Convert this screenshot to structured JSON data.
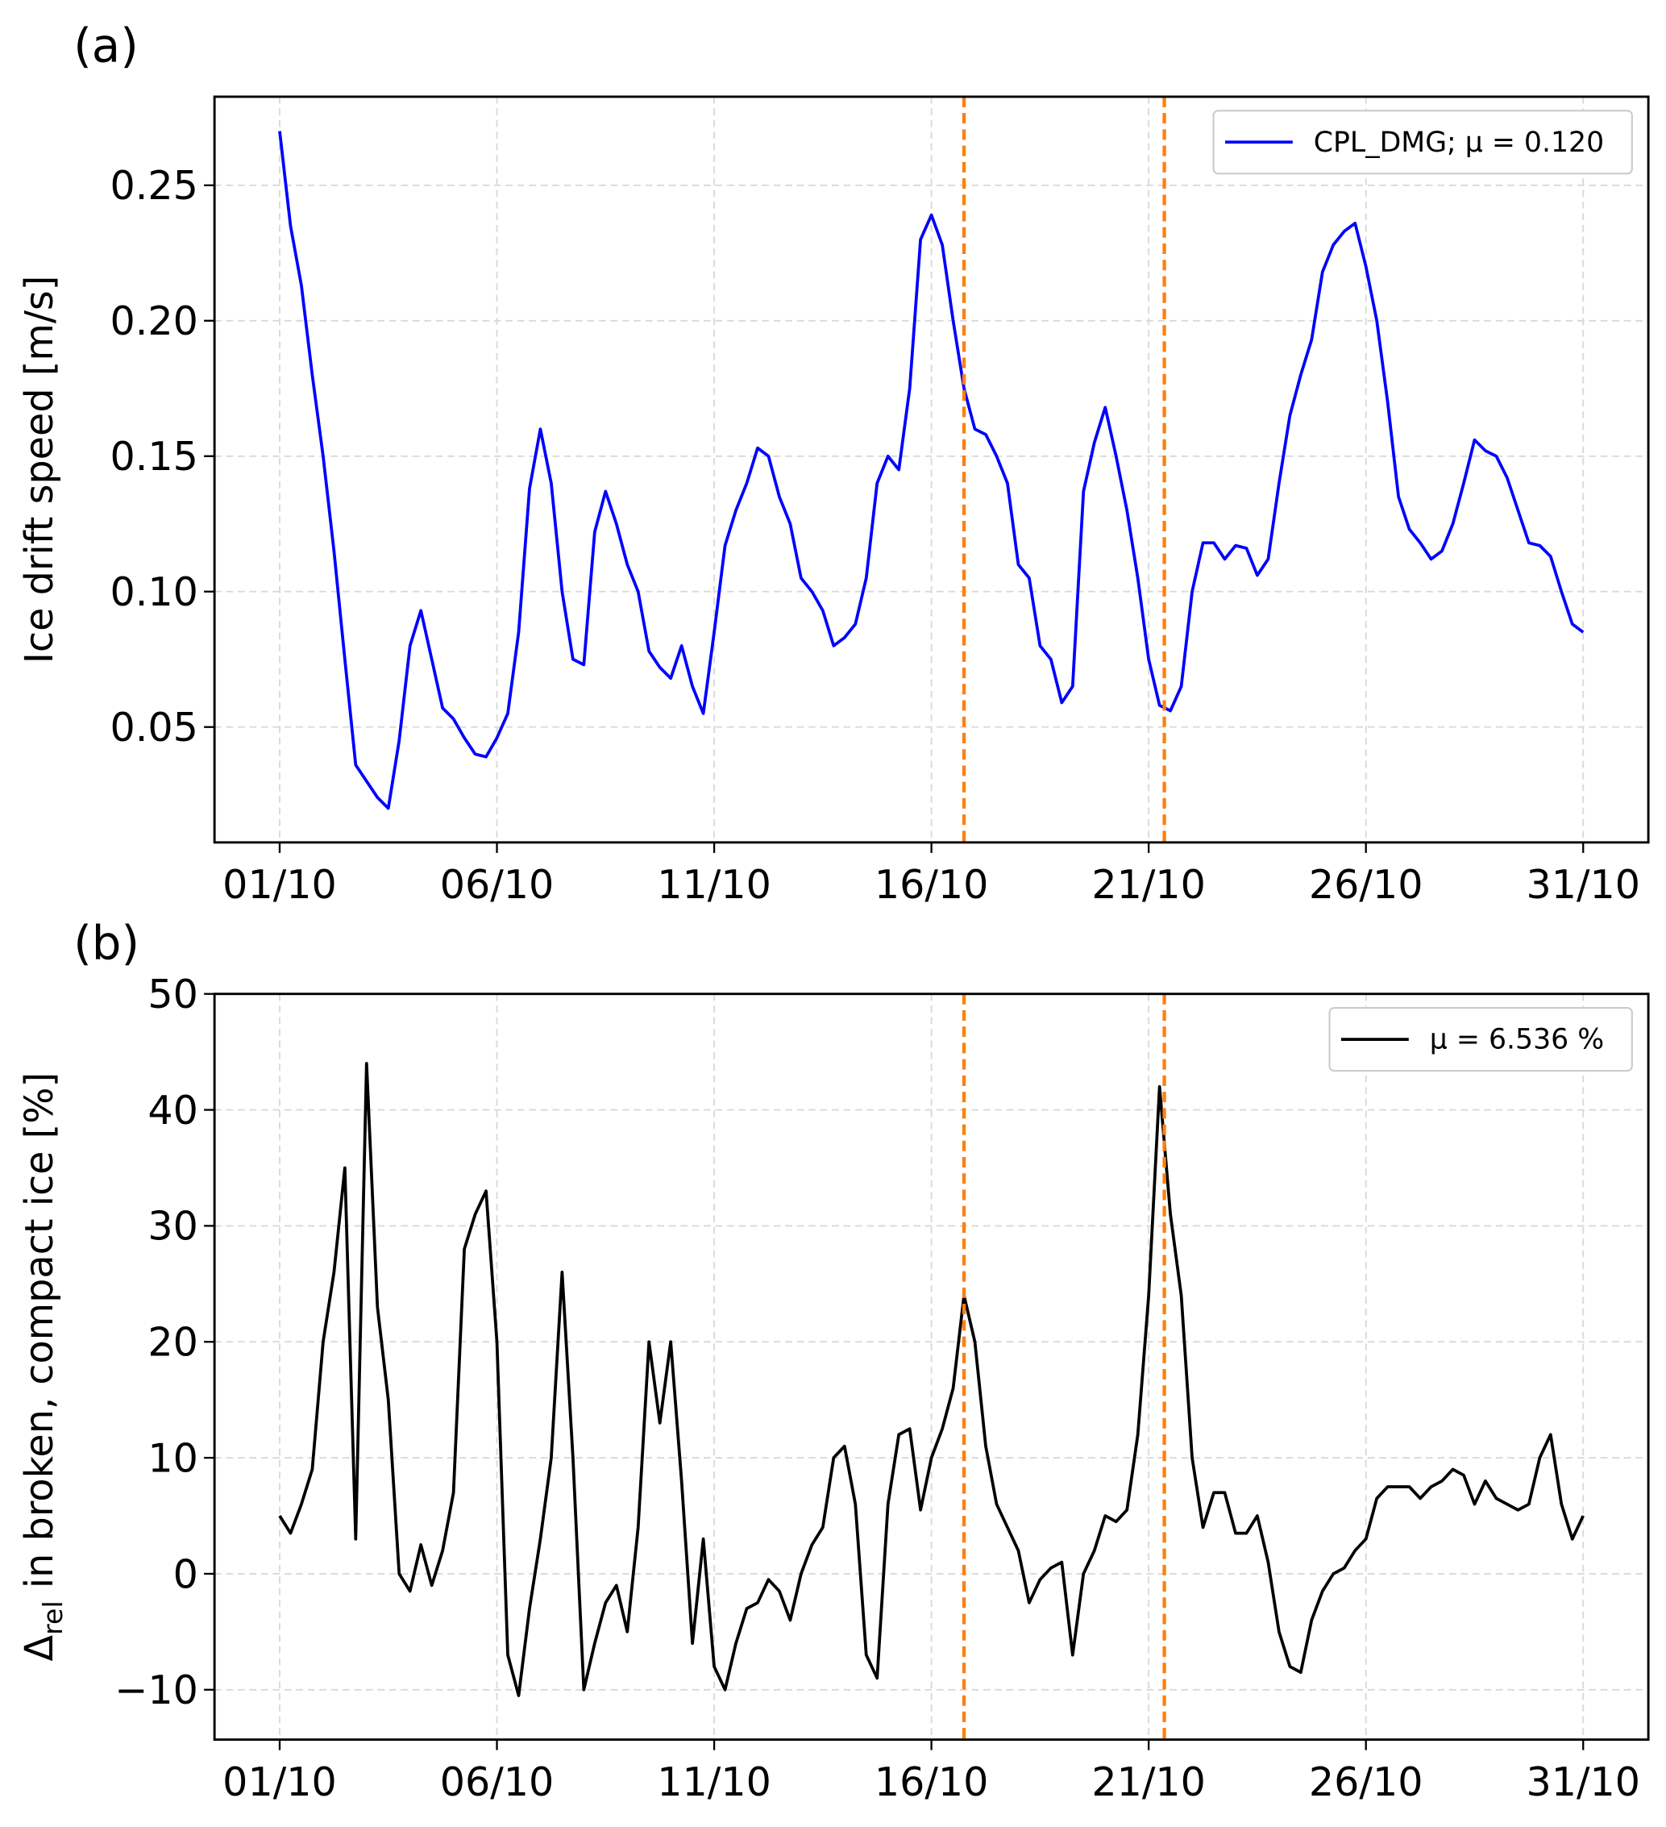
{
  "chart_data": [
    {
      "type": "line",
      "panel_label": "(a)",
      "ylabel": "Ice drift speed [m/s]",
      "x": [
        1,
        1.25,
        1.5,
        1.75,
        2,
        2.25,
        2.5,
        2.75,
        3,
        3.25,
        3.5,
        3.75,
        4,
        4.25,
        4.5,
        4.75,
        5,
        5.25,
        5.5,
        5.75,
        6,
        6.25,
        6.5,
        6.75,
        7,
        7.25,
        7.5,
        7.75,
        8,
        8.25,
        8.5,
        8.75,
        9,
        9.25,
        9.5,
        9.75,
        10,
        10.25,
        10.5,
        10.75,
        11,
        11.25,
        11.5,
        11.75,
        12,
        12.25,
        12.5,
        12.75,
        13,
        13.25,
        13.5,
        13.75,
        14,
        14.25,
        14.5,
        14.75,
        15,
        15.25,
        15.5,
        15.75,
        16,
        16.25,
        16.5,
        16.75,
        17,
        17.25,
        17.5,
        17.75,
        18,
        18.25,
        18.5,
        18.75,
        19,
        19.25,
        19.5,
        19.75,
        20,
        20.25,
        20.5,
        20.75,
        21,
        21.25,
        21.5,
        21.75,
        22,
        22.25,
        22.5,
        22.75,
        23,
        23.25,
        23.5,
        23.75,
        24,
        24.25,
        24.5,
        24.75,
        25,
        25.25,
        25.5,
        25.75,
        26,
        26.25,
        26.5,
        26.75,
        27,
        27.25,
        27.5,
        27.75,
        28,
        28.25,
        28.5,
        28.75,
        29,
        29.25,
        29.5,
        29.75,
        30,
        30.25,
        30.5,
        30.75,
        31
      ],
      "series": [
        {
          "name": "CPL_DMG; μ = 0.120",
          "color": "#0000ff",
          "values": [
            0.27,
            0.235,
            0.213,
            0.18,
            0.15,
            0.115,
            0.075,
            0.036,
            0.03,
            0.024,
            0.02,
            0.045,
            0.08,
            0.093,
            0.075,
            0.057,
            0.053,
            0.046,
            0.04,
            0.039,
            0.046,
            0.055,
            0.085,
            0.138,
            0.16,
            0.14,
            0.1,
            0.075,
            0.073,
            0.122,
            0.137,
            0.125,
            0.11,
            0.1,
            0.078,
            0.072,
            0.068,
            0.08,
            0.065,
            0.055,
            0.085,
            0.117,
            0.13,
            0.14,
            0.153,
            0.15,
            0.135,
            0.125,
            0.105,
            0.1,
            0.093,
            0.08,
            0.083,
            0.088,
            0.105,
            0.14,
            0.15,
            0.145,
            0.175,
            0.23,
            0.239,
            0.228,
            0.2,
            0.175,
            0.16,
            0.158,
            0.15,
            0.14,
            0.11,
            0.105,
            0.08,
            0.075,
            0.059,
            0.065,
            0.137,
            0.155,
            0.168,
            0.15,
            0.13,
            0.105,
            0.075,
            0.058,
            0.056,
            0.065,
            0.1,
            0.118,
            0.118,
            0.112,
            0.117,
            0.116,
            0.106,
            0.112,
            0.14,
            0.165,
            0.18,
            0.193,
            0.218,
            0.228,
            0.233,
            0.236,
            0.22,
            0.2,
            0.17,
            0.135,
            0.123,
            0.118,
            0.112,
            0.115,
            0.125,
            0.14,
            0.156,
            0.152,
            0.15,
            0.142,
            0.13,
            0.118,
            0.117,
            0.113,
            0.1,
            0.088,
            0.085
          ]
        }
      ],
      "xlim": [
        -0.5,
        32.5
      ],
      "xticks": [
        {
          "value": 1,
          "label": "01/10"
        },
        {
          "value": 6,
          "label": "06/10"
        },
        {
          "value": 11,
          "label": "11/10"
        },
        {
          "value": 16,
          "label": "16/10"
        },
        {
          "value": 21,
          "label": "21/10"
        },
        {
          "value": 26,
          "label": "26/10"
        },
        {
          "value": 31,
          "label": "31/10"
        }
      ],
      "ylim": [
        0.0074,
        0.2827
      ],
      "yticks": [
        0.05,
        {
          "value": 0.1,
          "label": "0.10"
        },
        0.15,
        {
          "value": 0.2,
          "label": "0.20"
        },
        0.25
      ],
      "vlines": [
        16.75,
        21.36
      ],
      "vline_color": "#ff7f0e",
      "grid": true,
      "legend": "upper right"
    },
    {
      "type": "line",
      "panel_label": "(b)",
      "ylabel_parts": [
        "Δ",
        "rel",
        " in broken, compact ice  [%]"
      ],
      "x": [
        1,
        1.25,
        1.5,
        1.75,
        2,
        2.25,
        2.5,
        2.75,
        3,
        3.25,
        3.5,
        3.75,
        4,
        4.25,
        4.5,
        4.75,
        5,
        5.25,
        5.5,
        5.75,
        6,
        6.25,
        6.5,
        6.75,
        7,
        7.25,
        7.5,
        7.75,
        8,
        8.25,
        8.5,
        8.75,
        9,
        9.25,
        9.5,
        9.75,
        10,
        10.25,
        10.5,
        10.75,
        11,
        11.25,
        11.5,
        11.75,
        12,
        12.25,
        12.5,
        12.75,
        13,
        13.25,
        13.5,
        13.75,
        14,
        14.25,
        14.5,
        14.75,
        15,
        15.25,
        15.5,
        15.75,
        16,
        16.25,
        16.5,
        16.75,
        17,
        17.25,
        17.5,
        17.75,
        18,
        18.25,
        18.5,
        18.75,
        19,
        19.25,
        19.5,
        19.75,
        20,
        20.25,
        20.5,
        20.75,
        21,
        21.25,
        21.5,
        21.75,
        22,
        22.25,
        22.5,
        22.75,
        23,
        23.25,
        23.5,
        23.75,
        24,
        24.25,
        24.5,
        24.75,
        25,
        25.25,
        25.5,
        25.75,
        26,
        26.25,
        26.5,
        26.75,
        27,
        27.25,
        27.5,
        27.75,
        28,
        28.25,
        28.5,
        28.75,
        29,
        29.25,
        29.5,
        29.75,
        30,
        30.25,
        30.5,
        30.75,
        31
      ],
      "series": [
        {
          "name": "μ = 6.536 %",
          "color": "#000000",
          "values": [
            5,
            3.5,
            6,
            9,
            20,
            26,
            35,
            3,
            44,
            23,
            15,
            0,
            -1.5,
            2.5,
            -1,
            2,
            7,
            28,
            31,
            33,
            20,
            -7,
            -10.5,
            -3,
            3,
            10,
            26,
            10,
            -10,
            -6,
            -2.5,
            -1,
            -5,
            4,
            20,
            13,
            20,
            8,
            -6,
            3,
            -8,
            -10,
            -6,
            -3,
            -2.5,
            -0.5,
            -1.5,
            -4,
            0,
            2.5,
            4,
            10,
            11,
            6,
            -7,
            -9,
            6,
            12,
            12.5,
            5.5,
            10,
            12.5,
            16,
            24,
            20,
            11,
            6,
            4,
            2,
            -2.5,
            -0.5,
            0.5,
            1,
            -7,
            0,
            2,
            5,
            4.5,
            5.5,
            12,
            24,
            42,
            31,
            24,
            10,
            4,
            7,
            7,
            3.5,
            3.5,
            5,
            1,
            -5,
            -8,
            -8.5,
            -4,
            -1.5,
            0,
            0.5,
            2,
            3,
            6.5,
            7.5,
            7.5,
            7.5,
            6.5,
            7.5,
            8,
            9,
            8.5,
            6,
            8,
            6.5,
            6,
            5.5,
            6,
            10,
            12,
            6,
            3,
            5
          ]
        }
      ],
      "xlim": [
        -0.5,
        32.5
      ],
      "xticks": [
        {
          "value": 1,
          "label": "01/10"
        },
        {
          "value": 6,
          "label": "06/10"
        },
        {
          "value": 11,
          "label": "11/10"
        },
        {
          "value": 16,
          "label": "16/10"
        },
        {
          "value": 21,
          "label": "21/10"
        },
        {
          "value": 26,
          "label": "26/10"
        },
        {
          "value": 31,
          "label": "31/10"
        }
      ],
      "ylim": [
        -14.3,
        50
      ],
      "yticks": [
        {
          "value": -10,
          "label": "−10"
        },
        0,
        10,
        20,
        30,
        40,
        50
      ],
      "vlines": [
        16.75,
        21.36
      ],
      "vline_color": "#ff7f0e",
      "grid": true,
      "legend": "upper right"
    }
  ]
}
